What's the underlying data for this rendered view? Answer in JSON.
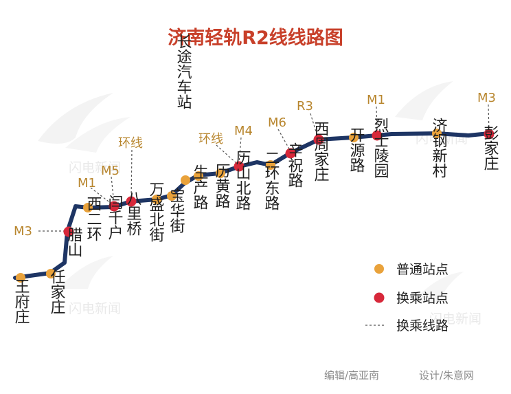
{
  "title": "济南轻轨R2线线路图",
  "colors": {
    "line": "#1e3564",
    "regular_station": "#e9a23b",
    "transfer_station": "#d7283a",
    "transfer_label": "#b8862e",
    "title": "#c8402a"
  },
  "stations": [
    {
      "name": "王府庄",
      "type": "regular"
    },
    {
      "name": "任家庄",
      "type": "regular"
    },
    {
      "name": "腊山",
      "type": "transfer",
      "transfer": "M3"
    },
    {
      "name": "西二环",
      "type": "regular"
    },
    {
      "name": "闫千户",
      "type": "transfer",
      "transfer": "M1 M5"
    },
    {
      "name": "八里桥",
      "type": "transfer",
      "transfer": "环线"
    },
    {
      "name": "万盛北街",
      "type": "regular"
    },
    {
      "name": "宝华街",
      "type": "regular"
    },
    {
      "name": "长途汽车站",
      "type": "regular"
    },
    {
      "name": "生产路",
      "type": "regular"
    },
    {
      "name": "历黄路",
      "type": "regular"
    },
    {
      "name": "历山北路",
      "type": "transfer",
      "transfer": "环线 M4"
    },
    {
      "name": "二环东路",
      "type": "regular"
    },
    {
      "name": "辛祝路",
      "type": "transfer",
      "transfer": "M6"
    },
    {
      "name": "西周家庄",
      "type": "transfer",
      "transfer": "R3"
    },
    {
      "name": "开源路",
      "type": "regular"
    },
    {
      "name": "烈士陵园",
      "type": "transfer",
      "transfer": "M1"
    },
    {
      "name": "济钢新村",
      "type": "regular"
    },
    {
      "name": "彭家庄",
      "type": "transfer",
      "transfer": "M3"
    }
  ],
  "transfer_labels": {
    "t0": "M3",
    "t1": "M1",
    "t2": "M5",
    "t3": "环线",
    "t4": "环线",
    "t5": "M4",
    "t6": "M6",
    "t7": "R3",
    "t8": "M1",
    "t9": "M3"
  },
  "legend": {
    "regular": "普通站点",
    "transfer": "换乘站点",
    "transfer_line": "换乘线路"
  },
  "watermark": "闪电新闻",
  "footer": {
    "editor": "编辑/高亚南",
    "designer": "设计/朱意网"
  }
}
